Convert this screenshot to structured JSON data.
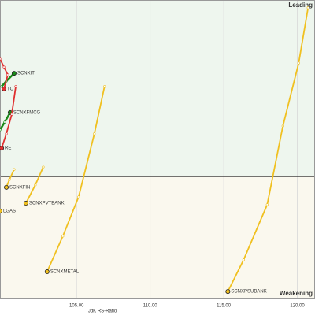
{
  "chart_data": {
    "type": "line",
    "x_label": "JdK RS-Ratio",
    "quadrant_labels": {
      "leading": "Leading",
      "weakening": "Weakening"
    },
    "quadrant_center": [
      100,
      100
    ],
    "xlim": [
      99.8,
      121.2
    ],
    "ylim": [
      95.9,
      105.9
    ],
    "xticks": [
      {
        "value": 105,
        "label": "105.00"
      },
      {
        "value": 110,
        "label": "110.00"
      },
      {
        "value": 115,
        "label": "115.00"
      },
      {
        "value": 120,
        "label": "120.00"
      }
    ],
    "grid": true,
    "series": [
      {
        "name": "SCNXIT",
        "color": "#1a8a1a",
        "x": [
          99.91,
          100.23,
          100.76
        ],
        "values": [
          103.01,
          103.19,
          103.45
        ]
      },
      {
        "name": "SCNXFMCG",
        "color": "#1a8a1a",
        "x": [
          99.8,
          100.12,
          100.49
        ],
        "values": [
          101.56,
          101.82,
          102.14
        ]
      },
      {
        "name": "TO",
        "color": "#e03030",
        "x": [
          99.8,
          100.07,
          100.33,
          100.07
        ],
        "values": [
          103.93,
          103.66,
          103.4,
          102.93
        ]
      },
      {
        "name": "RE",
        "color": "#e03030",
        "x": [
          100.87,
          100.6,
          100.23,
          99.91
        ],
        "values": [
          103.01,
          102.08,
          101.43,
          100.95
        ]
      },
      {
        "name": "SCNXFIN",
        "color": "#f0c020",
        "x": [
          100.76,
          100.44,
          100.23
        ],
        "values": [
          100.24,
          99.9,
          99.64
        ]
      },
      {
        "name": "SCNXPVTBANK",
        "color": "#f0c020",
        "x": [
          102.74,
          102.2,
          101.56
        ],
        "values": [
          100.32,
          99.72,
          99.11
        ]
      },
      {
        "name": "LGAS",
        "color": "#f0c020",
        "x": [
          99.8
        ],
        "values": [
          98.85
        ]
      },
      {
        "name": "SCNXMETAL",
        "color": "#f0c020",
        "x": [
          106.9,
          106.21,
          105.14,
          104.07,
          103.0
        ],
        "values": [
          103.01,
          101.43,
          99.32,
          98.01,
          96.82
        ]
      },
      {
        "name": "SCNXPSUBANK",
        "color": "#f0c020",
        "x": [
          120.73,
          120.09,
          119.02,
          117.95,
          116.35,
          115.28
        ],
        "values": [
          105.64,
          103.79,
          101.69,
          99.06,
          97.22,
          96.16
        ]
      }
    ]
  }
}
